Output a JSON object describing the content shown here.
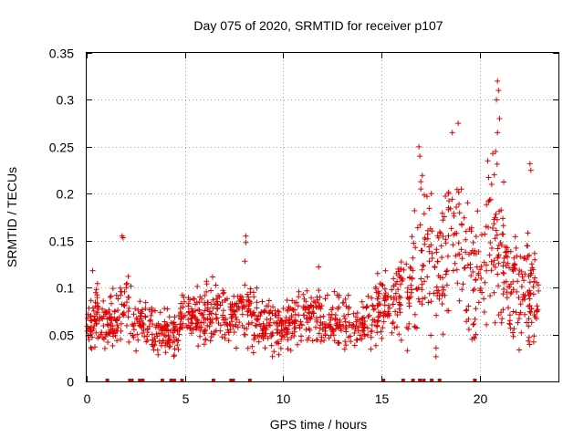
{
  "chart_data": {
    "type": "scatter",
    "title": "Day 075 of 2020, SRMTID for receiver p107",
    "xlabel": "GPS time / hours",
    "ylabel": "SRMTID / TECUs",
    "xlim": [
      0,
      24
    ],
    "ylim": [
      0,
      0.35
    ],
    "grid": true,
    "marker": "plus",
    "color": "#e00000",
    "x_ticks": [
      0,
      5,
      10,
      15,
      20
    ],
    "x_tick_labels": [
      "0",
      "5",
      "10",
      "15",
      "20"
    ],
    "y_ticks": [
      0,
      0.05,
      0.1,
      0.15,
      0.2,
      0.25,
      0.3,
      0.35
    ],
    "y_tick_labels": [
      "0",
      "0.05",
      "0.1",
      "0.15",
      "0.2",
      "0.25",
      "0.3",
      "0.35"
    ],
    "series": [
      {
        "name": "SRMTID",
        "profile": [
          {
            "x": 0.0,
            "y": 0.055
          },
          {
            "x": 0.5,
            "y": 0.075
          },
          {
            "x": 1.0,
            "y": 0.06
          },
          {
            "x": 1.5,
            "y": 0.065
          },
          {
            "x": 2.0,
            "y": 0.085
          },
          {
            "x": 2.5,
            "y": 0.06
          },
          {
            "x": 3.0,
            "y": 0.062
          },
          {
            "x": 3.5,
            "y": 0.055
          },
          {
            "x": 4.0,
            "y": 0.05
          },
          {
            "x": 4.5,
            "y": 0.055
          },
          {
            "x": 5.0,
            "y": 0.065
          },
          {
            "x": 5.5,
            "y": 0.07
          },
          {
            "x": 6.0,
            "y": 0.07
          },
          {
            "x": 6.5,
            "y": 0.075
          },
          {
            "x": 7.0,
            "y": 0.072
          },
          {
            "x": 7.5,
            "y": 0.07
          },
          {
            "x": 8.0,
            "y": 0.075
          },
          {
            "x": 8.5,
            "y": 0.068
          },
          {
            "x": 9.0,
            "y": 0.065
          },
          {
            "x": 9.5,
            "y": 0.06
          },
          {
            "x": 10.0,
            "y": 0.055
          },
          {
            "x": 10.5,
            "y": 0.065
          },
          {
            "x": 11.0,
            "y": 0.07
          },
          {
            "x": 11.5,
            "y": 0.068
          },
          {
            "x": 12.0,
            "y": 0.065
          },
          {
            "x": 12.5,
            "y": 0.062
          },
          {
            "x": 13.0,
            "y": 0.065
          },
          {
            "x": 13.5,
            "y": 0.058
          },
          {
            "x": 14.0,
            "y": 0.062
          },
          {
            "x": 14.5,
            "y": 0.07
          },
          {
            "x": 15.0,
            "y": 0.078
          },
          {
            "x": 15.5,
            "y": 0.08
          },
          {
            "x": 16.0,
            "y": 0.085
          },
          {
            "x": 16.5,
            "y": 0.1
          },
          {
            "x": 17.0,
            "y": 0.12
          },
          {
            "x": 17.5,
            "y": 0.13
          },
          {
            "x": 18.0,
            "y": 0.12
          },
          {
            "x": 18.5,
            "y": 0.14
          },
          {
            "x": 19.0,
            "y": 0.15
          },
          {
            "x": 19.5,
            "y": 0.12
          },
          {
            "x": 20.0,
            "y": 0.1
          },
          {
            "x": 20.5,
            "y": 0.16
          },
          {
            "x": 21.0,
            "y": 0.14
          },
          {
            "x": 21.5,
            "y": 0.11
          },
          {
            "x": 22.0,
            "y": 0.09
          },
          {
            "x": 22.5,
            "y": 0.1
          },
          {
            "x": 23.0,
            "y": 0.075
          }
        ],
        "notable_points": [
          {
            "x": 1.8,
            "y": 0.155
          },
          {
            "x": 1.85,
            "y": 0.153
          },
          {
            "x": 8.1,
            "y": 0.155
          },
          {
            "x": 8.1,
            "y": 0.148
          },
          {
            "x": 8.05,
            "y": 0.128
          },
          {
            "x": 16.9,
            "y": 0.25
          },
          {
            "x": 16.95,
            "y": 0.24
          },
          {
            "x": 18.9,
            "y": 0.275
          },
          {
            "x": 18.6,
            "y": 0.265
          },
          {
            "x": 20.9,
            "y": 0.32
          },
          {
            "x": 20.95,
            "y": 0.31
          },
          {
            "x": 20.85,
            "y": 0.3
          },
          {
            "x": 21.0,
            "y": 0.28
          },
          {
            "x": 20.9,
            "y": 0.265
          },
          {
            "x": 20.8,
            "y": 0.245
          },
          {
            "x": 20.4,
            "y": 0.235
          },
          {
            "x": 22.55,
            "y": 0.232
          },
          {
            "x": 22.6,
            "y": 0.225
          },
          {
            "x": 20.6,
            "y": 0.21
          },
          {
            "x": 18.4,
            "y": 0.2
          },
          {
            "x": 17.0,
            "y": 0.205
          },
          {
            "x": 11.8,
            "y": 0.122
          },
          {
            "x": 14.8,
            "y": 0.115
          },
          {
            "x": 15.2,
            "y": 0.118
          },
          {
            "x": 0.3,
            "y": 0.118
          },
          {
            "x": 19.8,
            "y": 0.05
          },
          {
            "x": 19.6,
            "y": 0.045
          }
        ],
        "zero_points_x": [
          1.05,
          2.2,
          2.3,
          2.7,
          2.85,
          3.85,
          4.3,
          4.45,
          4.85,
          6.45,
          7.35,
          7.45,
          8.3,
          15.1,
          16.1,
          16.6,
          16.95,
          17.15,
          17.55,
          17.95,
          19.75
        ]
      }
    ]
  }
}
